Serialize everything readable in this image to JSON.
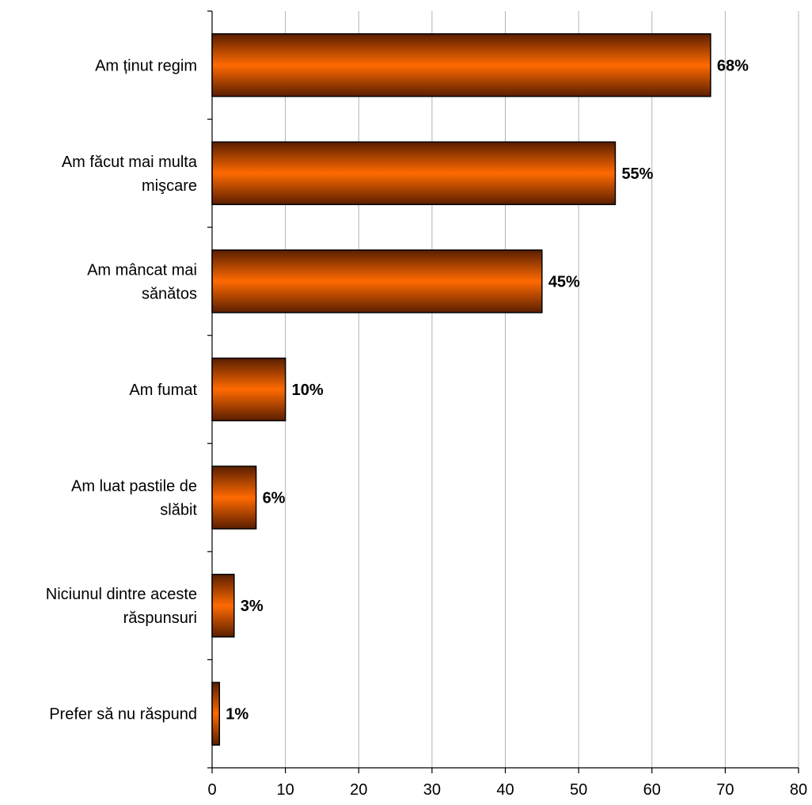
{
  "chart_data": {
    "type": "bar",
    "orientation": "horizontal",
    "title": "",
    "xlabel": "",
    "ylabel": "",
    "xlim": [
      0,
      80
    ],
    "x_ticks": [
      0,
      10,
      20,
      30,
      40,
      50,
      60,
      70,
      80
    ],
    "grid": "vertical",
    "legend": "none",
    "categories": [
      [
        "Am ținut regim"
      ],
      [
        "Am făcut mai multa",
        "mişcare"
      ],
      [
        "Am mâncat mai",
        "sănătos"
      ],
      [
        "Am fumat"
      ],
      [
        "Am luat pastile de",
        "slăbit"
      ],
      [
        "Niciunul dintre aceste",
        "răspunsuri"
      ],
      [
        "Prefer să nu răspund"
      ]
    ],
    "values": [
      68,
      55,
      45,
      10,
      6,
      3,
      1
    ],
    "data_labels": [
      "68%",
      "55%",
      "45%",
      "10%",
      "6%",
      "3%",
      "1%"
    ],
    "colors": {
      "bar_center": "#ff6a00",
      "bar_edge": "#5a1e00",
      "bar_outline": "#000000",
      "grid": "#b3b3b3",
      "axis": "#000000"
    }
  }
}
